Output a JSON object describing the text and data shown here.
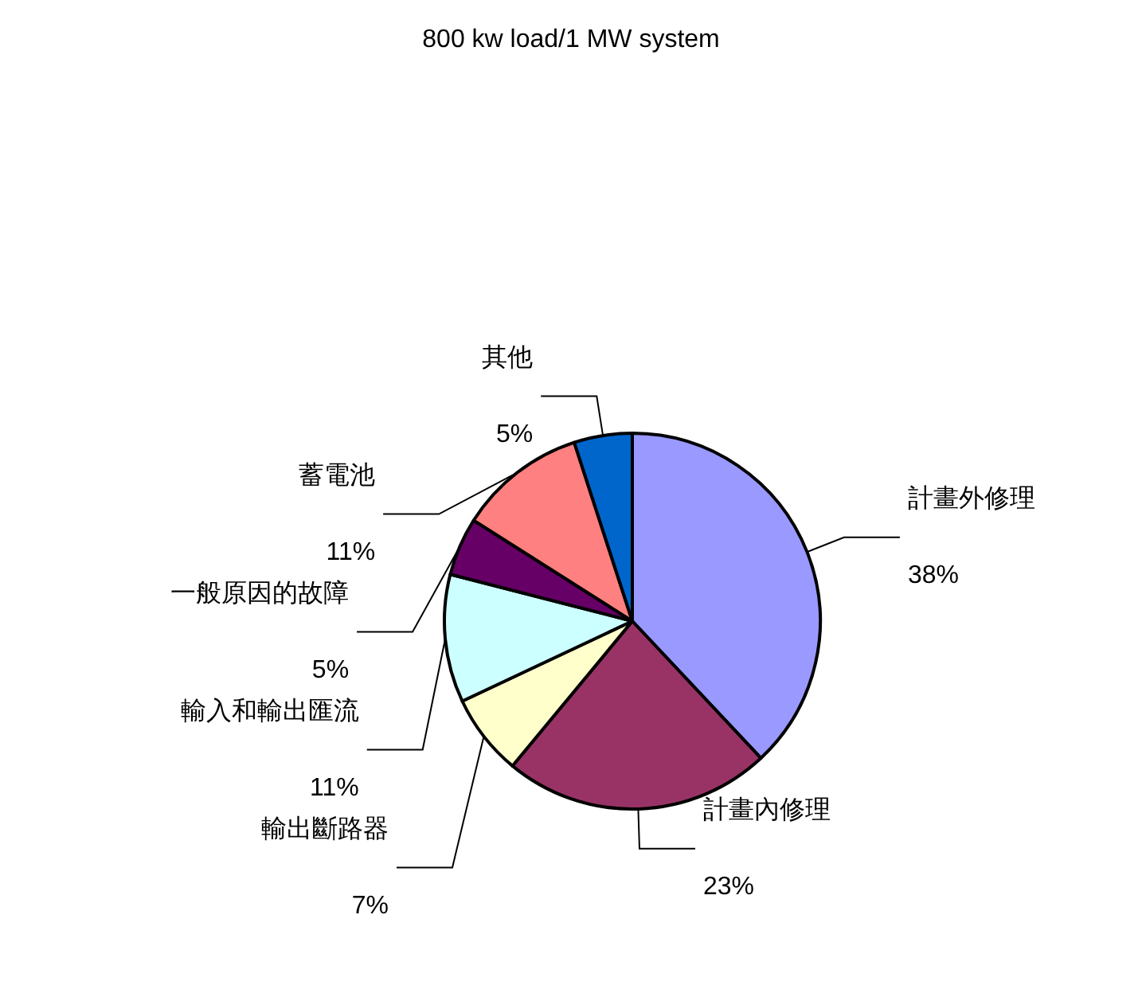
{
  "chart_data": {
    "type": "pie",
    "title": "800 kw load/1 MW system",
    "categories": [
      "計畫外修理",
      "計畫內修理",
      "輸出斷路器",
      "輸入和輸出匯流",
      "一般原因的故障",
      "蓄電池",
      "其他"
    ],
    "values": [
      38,
      23,
      7,
      11,
      5,
      11,
      5
    ],
    "value_labels": [
      "38%",
      "23%",
      "7%",
      "11%",
      "5%",
      "11%",
      "5%"
    ],
    "colors": [
      "#9999ff",
      "#993366",
      "#ffffcc",
      "#ccffff",
      "#660066",
      "#ff8080",
      "#0066cc"
    ],
    "legend": false
  }
}
